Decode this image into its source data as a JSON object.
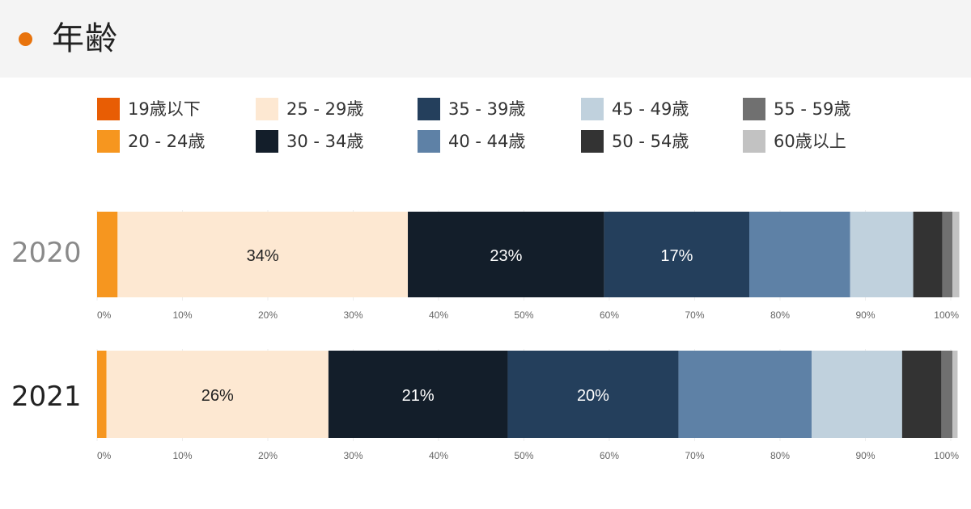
{
  "header": {
    "title": "年齢",
    "accent": "#e8730c"
  },
  "legend": [
    {
      "label": "19歳以下",
      "color": "#e85d04"
    },
    {
      "label": "20 - 24歳",
      "color": "#f6961f"
    },
    {
      "label": "25 - 29歳",
      "color": "#fde8d2"
    },
    {
      "label": "30 - 34歳",
      "color": "#131e2a"
    },
    {
      "label": "35 - 39歳",
      "color": "#243f5c"
    },
    {
      "label": "40 - 44歳",
      "color": "#5e81a6"
    },
    {
      "label": "45 - 49歳",
      "color": "#c0d1dd"
    },
    {
      "label": "50 - 54歳",
      "color": "#333333"
    },
    {
      "label": "55 - 59歳",
      "color": "#707070"
    },
    {
      "label": "60歳以上",
      "color": "#c2c2c2"
    }
  ],
  "chart_data": {
    "type": "bar",
    "orientation": "horizontal",
    "stacked": true,
    "xlim": [
      0,
      100
    ],
    "xticks": [
      "0%",
      "10%",
      "20%",
      "30%",
      "40%",
      "50%",
      "60%",
      "70%",
      "80%",
      "90%",
      "100%"
    ],
    "categories": [
      "2020",
      "2021"
    ],
    "series": [
      {
        "name": "19歳以下",
        "color": "#e85d04",
        "values": [
          0,
          0
        ]
      },
      {
        "name": "20 - 24歳",
        "color": "#f6961f",
        "values": [
          2.4,
          1.1
        ]
      },
      {
        "name": "25 - 29歳",
        "color": "#fde8d2",
        "values": [
          34,
          26
        ]
      },
      {
        "name": "30 - 34歳",
        "color": "#131e2a",
        "values": [
          23,
          21
        ]
      },
      {
        "name": "35 - 39歳",
        "color": "#243f5c",
        "values": [
          17,
          20
        ]
      },
      {
        "name": "40 - 44歳",
        "color": "#5e81a6",
        "values": [
          11.8,
          15.6
        ]
      },
      {
        "name": "45 - 49歳",
        "color": "#c0d1dd",
        "values": [
          7.4,
          10.6
        ]
      },
      {
        "name": "50 - 54歳",
        "color": "#333333",
        "values": [
          3.4,
          4.6
        ]
      },
      {
        "name": "55 - 59歳",
        "color": "#707070",
        "values": [
          1.2,
          1.3
        ]
      },
      {
        "name": "60歳以上",
        "color": "#c2c2c2",
        "values": [
          0.8,
          0.6
        ]
      }
    ],
    "data_labels": [
      [
        {
          "series": 2,
          "text": "34%",
          "color": "#222222"
        },
        {
          "series": 3,
          "text": "23%",
          "color": "#ffffff"
        },
        {
          "series": 4,
          "text": "17%",
          "color": "#ffffff"
        }
      ],
      [
        {
          "series": 2,
          "text": "26%",
          "color": "#222222"
        },
        {
          "series": 3,
          "text": "21%",
          "color": "#ffffff"
        },
        {
          "series": 4,
          "text": "20%",
          "color": "#ffffff"
        }
      ]
    ],
    "year_colors": [
      "#8a8a8a",
      "#222222"
    ]
  }
}
